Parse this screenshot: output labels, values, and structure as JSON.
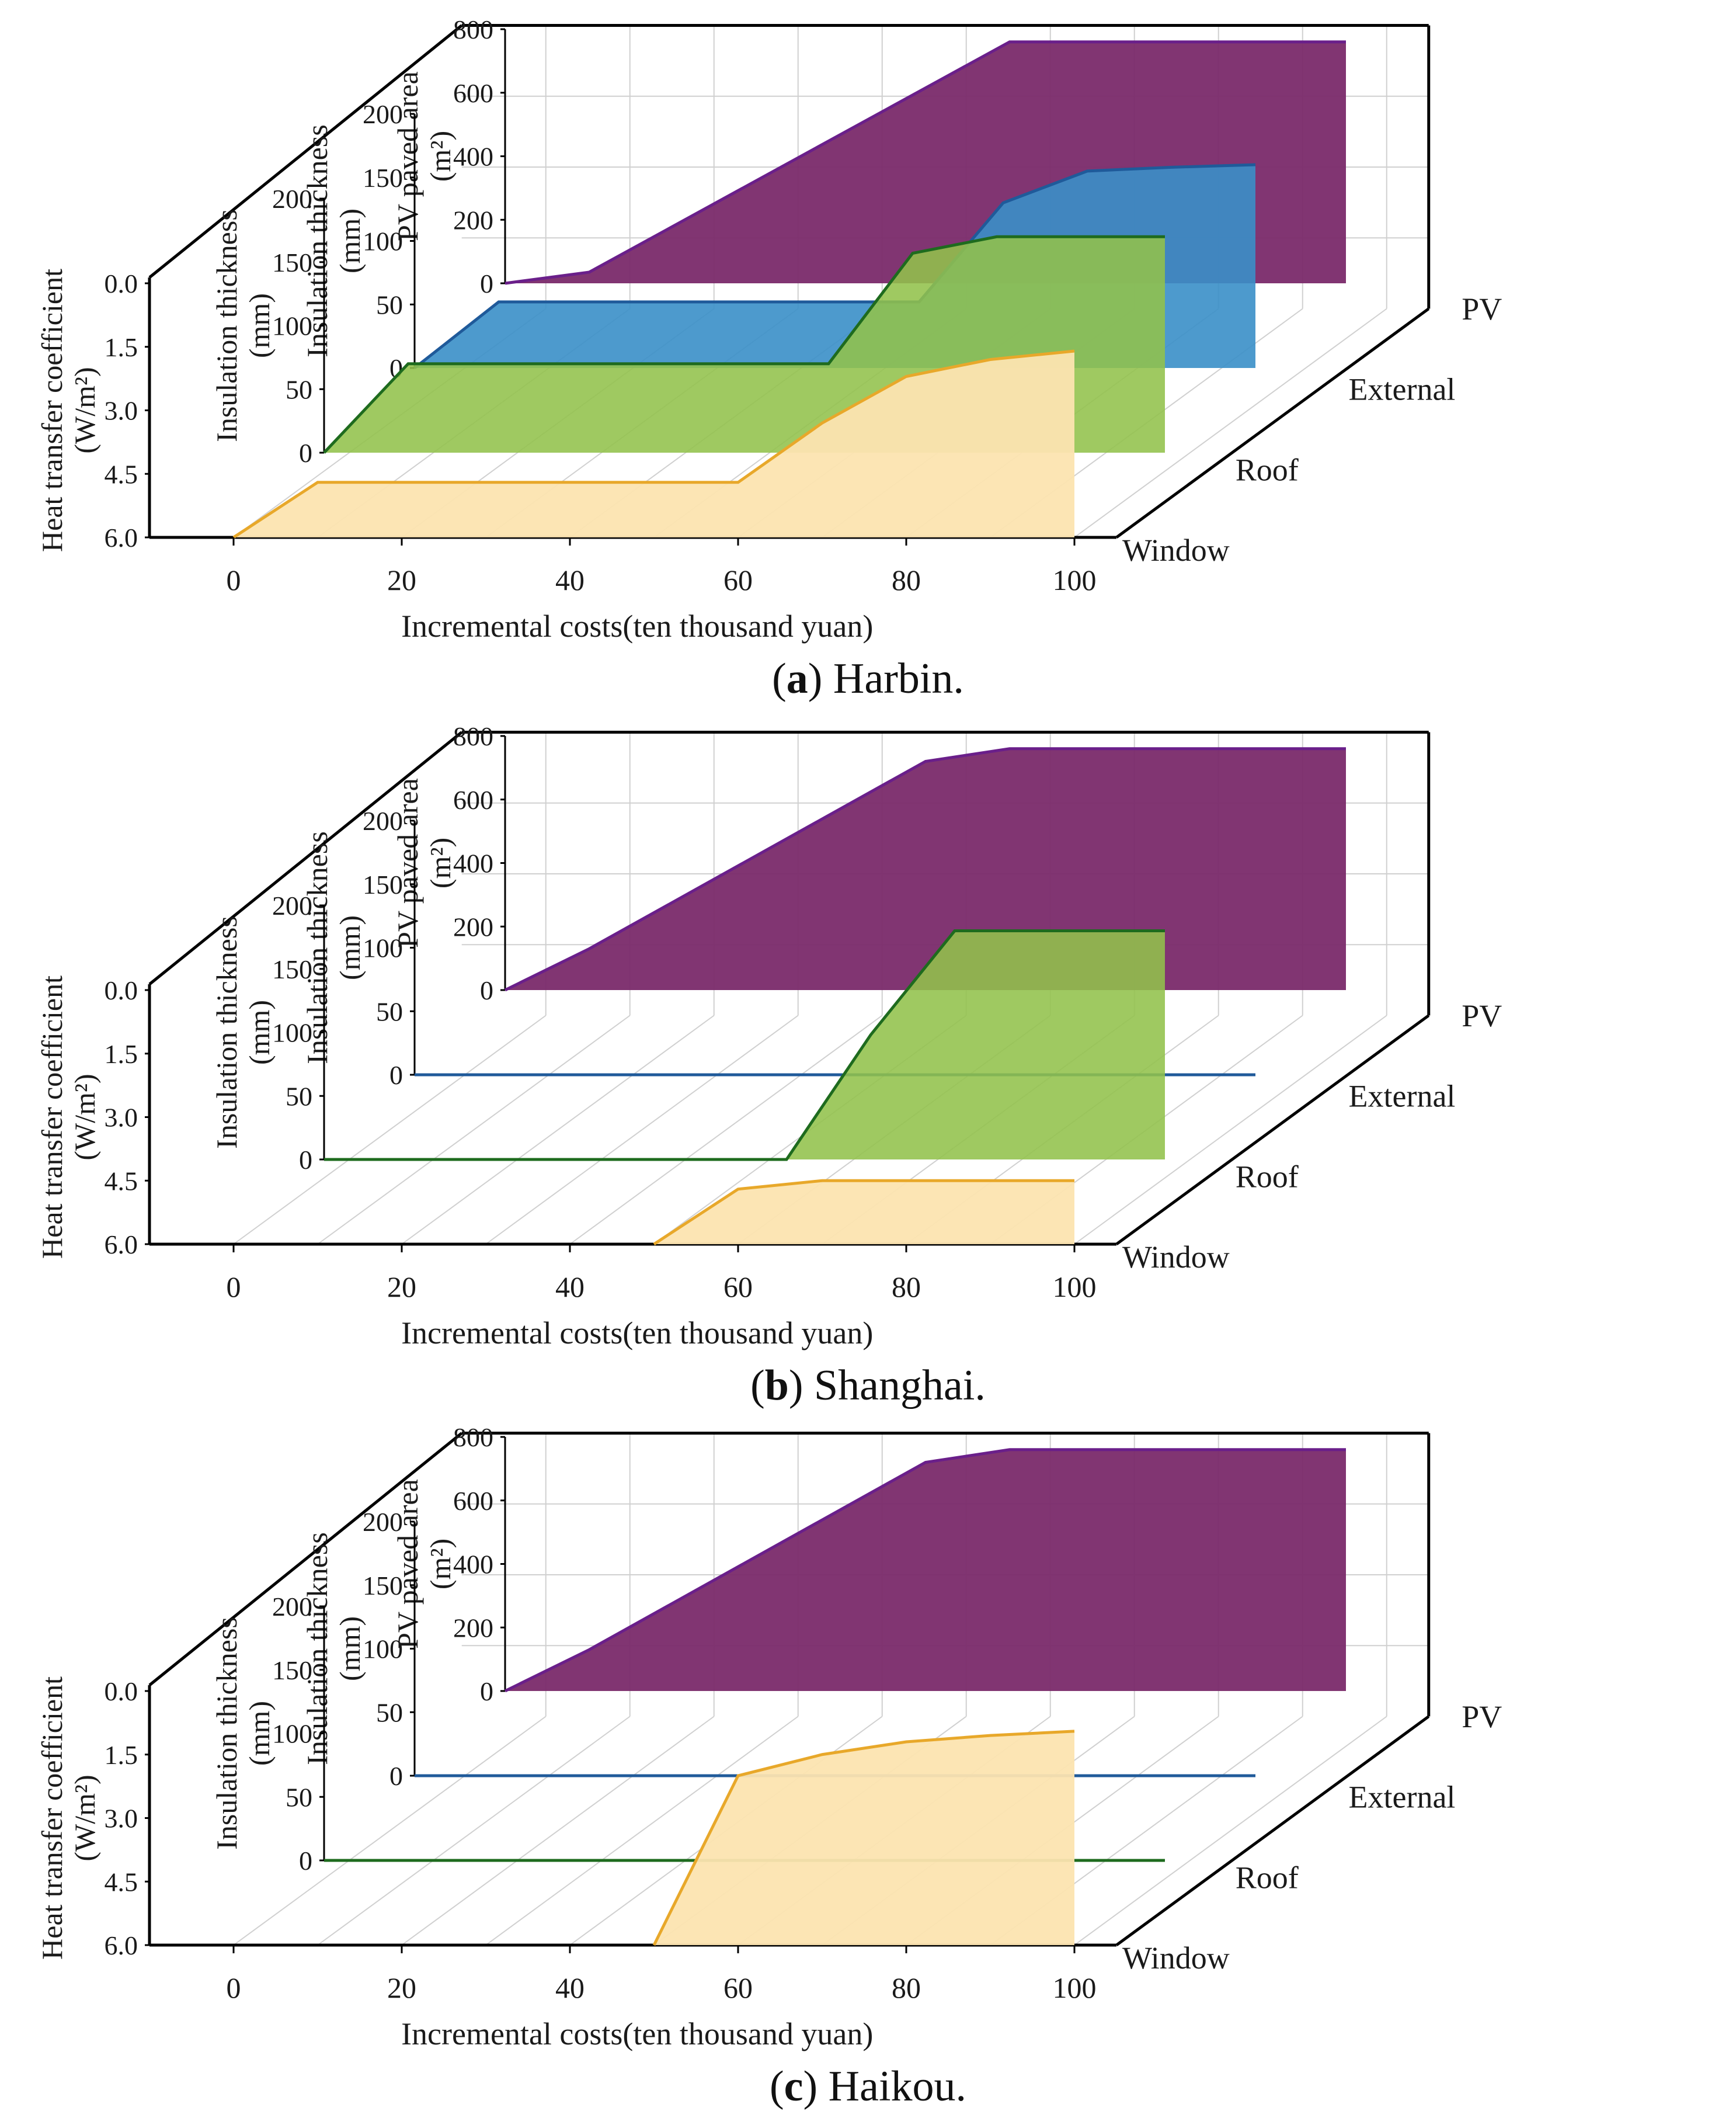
{
  "figure": {
    "x_axis": {
      "label": "Incremental costs(ten thousand yuan)",
      "range": [
        -10,
        105
      ],
      "ticks": [
        "0",
        "20",
        "40",
        "60",
        "80",
        "100"
      ],
      "tick_values": [
        0,
        20,
        40,
        60,
        80,
        100
      ]
    },
    "depth_categories": [
      "Window",
      "Roof",
      "External",
      "PV"
    ],
    "colors": {
      "window_fill": "#fce4b0",
      "window_line": "#e8a82a",
      "roof_fill": "#92c24b",
      "roof_line": "#1e6b1e",
      "external_fill": "#3a8fc8",
      "external_line": "#1f5a9a",
      "pv_fill": "#7a2a6a",
      "pv_line": "#6a1f8a",
      "axis": "#000000",
      "grid": "#d0d0d0"
    }
  },
  "chart_data": [
    {
      "type": "area",
      "caption_letter": "a",
      "caption_text": " Harbin.",
      "series": [
        {
          "name": "Window",
          "axis_title": [
            "Heat transfer coefficient",
            "(W/m²)"
          ],
          "y_ticks": [
            "0.0",
            "1.5",
            "3.0",
            "4.5",
            "6.0"
          ],
          "ylim": [
            6.0,
            0.0
          ],
          "x": [
            0,
            10,
            60,
            70,
            80,
            90,
            100
          ],
          "y": [
            6.0,
            4.7,
            4.7,
            3.3,
            2.2,
            1.8,
            1.6
          ]
        },
        {
          "name": "Roof",
          "axis_title": [
            "Insulation thickness",
            "(mm)"
          ],
          "y_ticks": [
            "0",
            "50",
            "100",
            "150",
            "200"
          ],
          "ylim": [
            0,
            200
          ],
          "x": [
            0,
            10,
            60,
            70,
            80,
            90,
            100
          ],
          "y": [
            0,
            70,
            70,
            157,
            170,
            170,
            170
          ]
        },
        {
          "name": "External",
          "axis_title": [
            "Insulation thickness",
            "(mm)"
          ],
          "y_ticks": [
            "0",
            "50",
            "100",
            "150",
            "200"
          ],
          "ylim": [
            0,
            200
          ],
          "x": [
            0,
            10,
            60,
            70,
            80,
            90,
            100
          ],
          "y": [
            0,
            52,
            52,
            130,
            155,
            158,
            160
          ]
        },
        {
          "name": "PV",
          "axis_title": [
            "PV paved area",
            "(m²)"
          ],
          "y_ticks": [
            "0",
            "200",
            "400",
            "600",
            "800"
          ],
          "ylim": [
            0,
            800
          ],
          "x": [
            0,
            10,
            60,
            100
          ],
          "y": [
            0,
            35,
            760,
            760
          ]
        }
      ]
    },
    {
      "type": "area",
      "caption_letter": "b",
      "caption_text": " Shanghai.",
      "series": [
        {
          "name": "Window",
          "axis_title": [
            "Heat transfer coefficient",
            "(W/m²)"
          ],
          "y_ticks": [
            "0.0",
            "1.5",
            "3.0",
            "4.5",
            "6.0"
          ],
          "ylim": [
            6.0,
            0.0
          ],
          "x": [
            50,
            60,
            70,
            100
          ],
          "y": [
            6.0,
            4.7,
            4.5,
            4.5
          ]
        },
        {
          "name": "Roof",
          "axis_title": [
            "Insulation thickness",
            "(mm)"
          ],
          "y_ticks": [
            "0",
            "50",
            "100",
            "150",
            "200"
          ],
          "ylim": [
            0,
            200
          ],
          "x": [
            0,
            55,
            65,
            75,
            100
          ],
          "y": [
            0,
            0,
            98,
            180,
            180
          ]
        },
        {
          "name": "External",
          "axis_title": [
            "Insulation thickness",
            "(mm)"
          ],
          "y_ticks": [
            "0",
            "50",
            "100",
            "150",
            "200"
          ],
          "ylim": [
            0,
            200
          ],
          "x": [
            0,
            100
          ],
          "y": [
            0,
            0
          ]
        },
        {
          "name": "PV",
          "axis_title": [
            "PV paved area",
            "(m²)"
          ],
          "y_ticks": [
            "0",
            "200",
            "400",
            "600",
            "800"
          ],
          "ylim": [
            0,
            800
          ],
          "x": [
            0,
            10,
            50,
            60,
            100
          ],
          "y": [
            0,
            130,
            720,
            760,
            760
          ]
        }
      ]
    },
    {
      "type": "area",
      "caption_letter": "c",
      "caption_text": " Haikou.",
      "series": [
        {
          "name": "Window",
          "axis_title": [
            "Heat transfer coefficient",
            "(W/m²)"
          ],
          "y_ticks": [
            "0.0",
            "1.5",
            "3.0",
            "4.5",
            "6.0"
          ],
          "ylim": [
            6.0,
            0.0
          ],
          "x": [
            50,
            60,
            70,
            80,
            90,
            100
          ],
          "y": [
            6.0,
            2.0,
            1.5,
            1.2,
            1.05,
            0.95
          ]
        },
        {
          "name": "Roof",
          "axis_title": [
            "Insulation thickness",
            "(mm)"
          ],
          "y_ticks": [
            "0",
            "50",
            "100",
            "150",
            "200"
          ],
          "ylim": [
            0,
            200
          ],
          "x": [
            0,
            100
          ],
          "y": [
            0,
            0
          ]
        },
        {
          "name": "External",
          "axis_title": [
            "Insulation thickness",
            "(mm)"
          ],
          "y_ticks": [
            "0",
            "50",
            "100",
            "150",
            "200"
          ],
          "ylim": [
            0,
            200
          ],
          "x": [
            0,
            100
          ],
          "y": [
            0,
            0
          ]
        },
        {
          "name": "PV",
          "axis_title": [
            "PV paved area",
            "(m²)"
          ],
          "y_ticks": [
            "0",
            "200",
            "400",
            "600",
            "800"
          ],
          "ylim": [
            0,
            800
          ],
          "x": [
            0,
            10,
            50,
            60,
            100
          ],
          "y": [
            0,
            130,
            720,
            760,
            760
          ]
        }
      ]
    }
  ]
}
